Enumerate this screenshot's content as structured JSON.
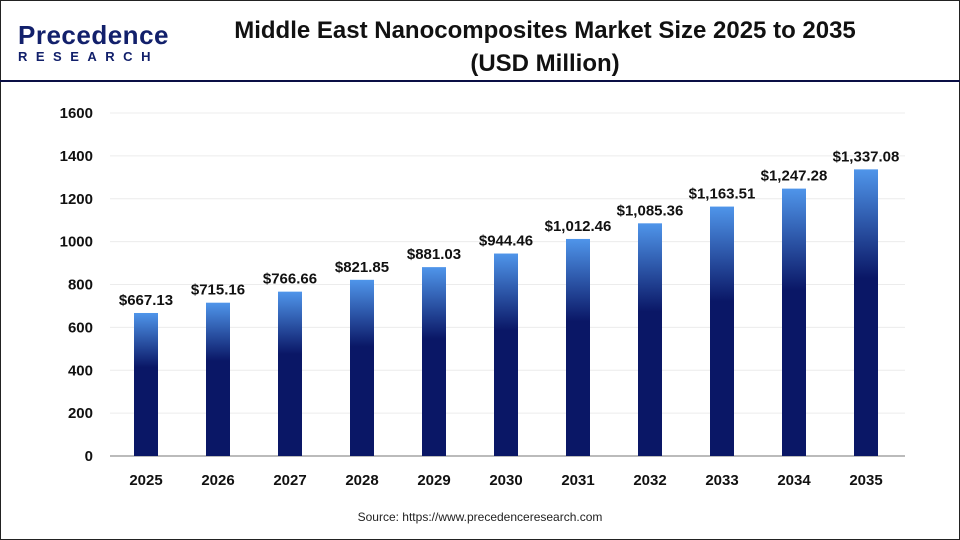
{
  "logo": {
    "main": "Precedence",
    "sub": "RESEARCH"
  },
  "header": {
    "title_line1": "Middle East Nanocomposites Market Size 2025 to 2035",
    "title_line2": "(USD Million)"
  },
  "source": "Source: https://www.precedenceresearch.com",
  "colors": {
    "bar_top": "#4f95ea",
    "bar_bottom": "#0a1766",
    "header_line": "#0a0f45"
  },
  "chart_data": {
    "type": "bar",
    "title": "Middle East Nanocomposites Market Size 2025 to 2035 (USD Million)",
    "xlabel": "",
    "ylabel": "",
    "categories": [
      "2025",
      "2026",
      "2027",
      "2028",
      "2029",
      "2030",
      "2031",
      "2032",
      "2033",
      "2034",
      "2035"
    ],
    "values": [
      667.13,
      715.16,
      766.66,
      821.85,
      881.03,
      944.46,
      1012.46,
      1085.36,
      1163.51,
      1247.28,
      1337.08
    ],
    "labels": [
      "$667.13",
      "$715.16",
      "$766.66",
      "$821.85",
      "$881.03",
      "$944.46",
      "$1,012.46",
      "$1,085.36",
      "$1,163.51",
      "$1,247.28",
      "$1,337.08"
    ],
    "ylim": [
      0,
      1600
    ],
    "yticks": [
      0,
      200,
      400,
      600,
      800,
      1000,
      1200,
      1400,
      1600
    ],
    "grid": true,
    "legend": "none"
  }
}
